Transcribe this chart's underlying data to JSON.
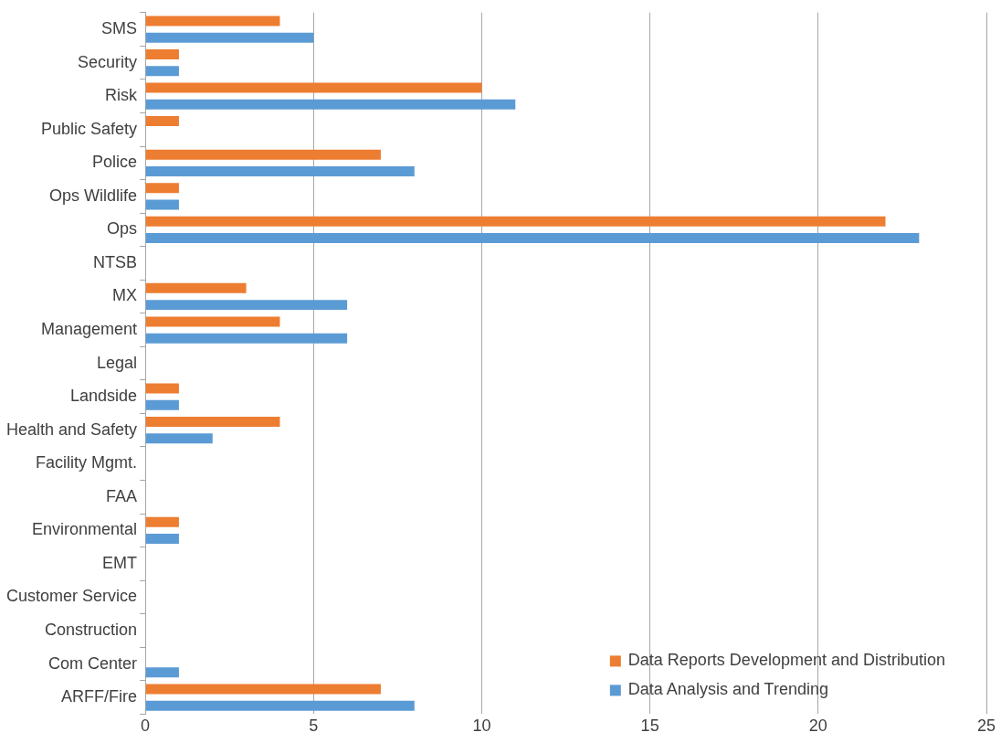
{
  "chart_data": {
    "type": "bar",
    "orientation": "horizontal",
    "categories": [
      "SMS",
      "Security",
      "Risk",
      "Public Safety",
      "Police",
      "Ops Wildlife",
      "Ops",
      "NTSB",
      "MX",
      "Management",
      "Legal",
      "Landside",
      "Health and Safety",
      "Facility Mgmt.",
      "FAA",
      "Environmental",
      "EMT",
      "Customer Service",
      "Construction",
      "Com Center",
      "ARFF/Fire"
    ],
    "series": [
      {
        "name": "Data Reports Development and Distribution",
        "color": "#ed7d31",
        "values": [
          4,
          1,
          10,
          1,
          7,
          1,
          22,
          0,
          3,
          4,
          0,
          1,
          4,
          0,
          0,
          1,
          0,
          0,
          0,
          0,
          7
        ]
      },
      {
        "name": "Data Analysis and Trending",
        "color": "#5b9bd5",
        "values": [
          5,
          1,
          11,
          0,
          8,
          1,
          23,
          0,
          6,
          6,
          0,
          1,
          2,
          0,
          0,
          1,
          0,
          0,
          0,
          1,
          8
        ]
      }
    ],
    "xlim": [
      0,
      25
    ],
    "xticks": [
      0,
      5,
      10,
      15,
      20,
      25
    ],
    "grid": "x",
    "legend": "bottom right"
  }
}
